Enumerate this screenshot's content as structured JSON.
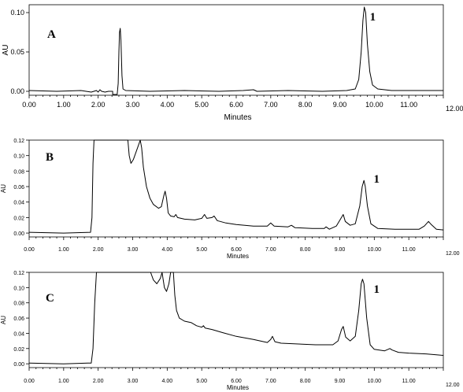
{
  "chart_data": [
    {
      "type": "line",
      "panel_label": "A",
      "xlabel": "Minutes",
      "ylabel": "AU",
      "xlim": [
        0,
        12
      ],
      "ylim": [
        -0.005,
        0.11
      ],
      "x_ticks": [
        "0.00",
        "1.00",
        "2.00",
        "3.00",
        "4.00",
        "5.00",
        "6.00",
        "7.00",
        "8.00",
        "9.00",
        "10.00",
        "11.00",
        "12.00"
      ],
      "y_ticks": [
        "0.00",
        "0.05",
        "0.10"
      ],
      "y_tick_values": [
        0,
        0.05,
        0.1
      ],
      "peak_labels": [
        {
          "text": "1",
          "x": 9.87,
          "y": 0.09
        }
      ],
      "series": [
        {
          "points": [
            [
              0,
              0.001
            ],
            [
              0.8,
              0.0
            ],
            [
              1.5,
              0.001
            ],
            [
              1.8,
              -0.001
            ],
            [
              1.95,
              0.001
            ],
            [
              2.0,
              -0.001
            ],
            [
              2.05,
              0.002
            ],
            [
              2.1,
              0.0
            ],
            [
              2.2,
              -0.001
            ],
            [
              2.3,
              0.0
            ],
            [
              2.42,
              0.0
            ],
            [
              2.42,
              -0.004
            ],
            [
              2.55,
              -0.004
            ],
            [
              2.58,
              0.01
            ],
            [
              2.6,
              0.05
            ],
            [
              2.62,
              0.075
            ],
            [
              2.64,
              0.08
            ],
            [
              2.66,
              0.065
            ],
            [
              2.69,
              0.02
            ],
            [
              2.72,
              0.003
            ],
            [
              2.8,
              0.001
            ],
            [
              3.5,
              0.0
            ],
            [
              4.5,
              0.001
            ],
            [
              5.5,
              0.0
            ],
            [
              6.2,
              0.001
            ],
            [
              6.5,
              0.002
            ],
            [
              6.6,
              0.0
            ],
            [
              7.5,
              0.001
            ],
            [
              8.5,
              0.0
            ],
            [
              9.2,
              0.001
            ],
            [
              9.45,
              0.003
            ],
            [
              9.55,
              0.015
            ],
            [
              9.62,
              0.05
            ],
            [
              9.67,
              0.09
            ],
            [
              9.71,
              0.107
            ],
            [
              9.75,
              0.1
            ],
            [
              9.8,
              0.06
            ],
            [
              9.87,
              0.025
            ],
            [
              9.95,
              0.008
            ],
            [
              10.1,
              0.003
            ],
            [
              10.5,
              0.001
            ],
            [
              11,
              0.001
            ],
            [
              12,
              0.001
            ]
          ]
        }
      ]
    },
    {
      "type": "line",
      "panel_label": "B",
      "xlabel": "Minutes",
      "ylabel": "AU",
      "xlim": [
        0,
        12
      ],
      "ylim": [
        -0.005,
        0.12
      ],
      "x_ticks": [
        "0.00",
        "1.00",
        "2.00",
        "3.00",
        "4.00",
        "5.00",
        "6.00",
        "7.00",
        "8.00",
        "9.00",
        "10.00",
        "11.00",
        "12.00"
      ],
      "y_ticks": [
        "0.00",
        "0.02",
        "0.04",
        "0.06",
        "0.08",
        "0.10",
        "0.12"
      ],
      "y_tick_values": [
        0,
        0.02,
        0.04,
        0.06,
        0.08,
        0.1,
        0.12
      ],
      "peak_labels": [
        {
          "text": "1",
          "x": 9.98,
          "y": 0.065
        }
      ],
      "series": [
        {
          "points": [
            [
              0,
              0.001
            ],
            [
              1.0,
              0.0
            ],
            [
              1.78,
              0.001
            ],
            [
              1.82,
              0.02
            ],
            [
              1.85,
              0.09
            ],
            [
              1.88,
              0.12
            ],
            [
              2.86,
              0.12
            ],
            [
              2.9,
              0.1
            ],
            [
              2.95,
              0.09
            ],
            [
              3.02,
              0.095
            ],
            [
              3.1,
              0.105
            ],
            [
              3.18,
              0.115
            ],
            [
              3.22,
              0.12
            ],
            [
              3.26,
              0.11
            ],
            [
              3.31,
              0.085
            ],
            [
              3.4,
              0.06
            ],
            [
              3.5,
              0.045
            ],
            [
              3.6,
              0.037
            ],
            [
              3.75,
              0.032
            ],
            [
              3.83,
              0.034
            ],
            [
              3.9,
              0.048
            ],
            [
              3.94,
              0.054
            ],
            [
              3.98,
              0.045
            ],
            [
              4.03,
              0.026
            ],
            [
              4.1,
              0.022
            ],
            [
              4.2,
              0.021
            ],
            [
              4.25,
              0.024
            ],
            [
              4.3,
              0.02
            ],
            [
              4.5,
              0.018
            ],
            [
              4.8,
              0.017
            ],
            [
              5.0,
              0.019
            ],
            [
              5.08,
              0.024
            ],
            [
              5.15,
              0.019
            ],
            [
              5.3,
              0.02
            ],
            [
              5.36,
              0.022
            ],
            [
              5.45,
              0.016
            ],
            [
              5.7,
              0.013
            ],
            [
              6.0,
              0.011
            ],
            [
              6.5,
              0.009
            ],
            [
              6.9,
              0.009
            ],
            [
              7.0,
              0.013
            ],
            [
              7.1,
              0.009
            ],
            [
              7.5,
              0.008
            ],
            [
              7.6,
              0.01
            ],
            [
              7.7,
              0.007
            ],
            [
              8.2,
              0.006
            ],
            [
              8.55,
              0.006
            ],
            [
              8.6,
              0.008
            ],
            [
              8.7,
              0.005
            ],
            [
              8.9,
              0.009
            ],
            [
              9.02,
              0.018
            ],
            [
              9.1,
              0.024
            ],
            [
              9.16,
              0.015
            ],
            [
              9.3,
              0.01
            ],
            [
              9.45,
              0.012
            ],
            [
              9.58,
              0.035
            ],
            [
              9.65,
              0.06
            ],
            [
              9.7,
              0.068
            ],
            [
              9.74,
              0.06
            ],
            [
              9.8,
              0.035
            ],
            [
              9.9,
              0.012
            ],
            [
              10.1,
              0.006
            ],
            [
              10.6,
              0.005
            ],
            [
              11.0,
              0.005
            ],
            [
              11.3,
              0.005
            ],
            [
              11.45,
              0.009
            ],
            [
              11.57,
              0.015
            ],
            [
              11.65,
              0.011
            ],
            [
              11.8,
              0.005
            ],
            [
              12,
              0.004
            ]
          ]
        }
      ]
    },
    {
      "type": "line",
      "panel_label": "C",
      "xlabel": "Minutes",
      "ylabel": "AU",
      "xlim": [
        0,
        12
      ],
      "ylim": [
        -0.005,
        0.12
      ],
      "x_ticks": [
        "0.00",
        "1.00",
        "2.00",
        "3.00",
        "4.00",
        "5.00",
        "6.00",
        "7.00",
        "8.00",
        "9.00",
        "10.00",
        "11.00",
        "12.00"
      ],
      "y_ticks": [
        "0.00",
        "0.02",
        "0.04",
        "0.06",
        "0.08",
        "0.10",
        "0.12"
      ],
      "y_tick_values": [
        0,
        0.02,
        0.04,
        0.06,
        0.08,
        0.1,
        0.12
      ],
      "peak_labels": [
        {
          "text": "1",
          "x": 9.98,
          "y": 0.093
        }
      ],
      "series": [
        {
          "points": [
            [
              0,
              0.001
            ],
            [
              1.0,
              0.0
            ],
            [
              1.7,
              0.001
            ],
            [
              1.8,
              0.001
            ],
            [
              1.85,
              0.02
            ],
            [
              1.9,
              0.08
            ],
            [
              1.95,
              0.12
            ],
            [
              3.52,
              0.12
            ],
            [
              3.6,
              0.11
            ],
            [
              3.7,
              0.105
            ],
            [
              3.8,
              0.112
            ],
            [
              3.85,
              0.12
            ],
            [
              3.92,
              0.1
            ],
            [
              3.98,
              0.095
            ],
            [
              4.05,
              0.105
            ],
            [
              4.1,
              0.12
            ],
            [
              4.18,
              0.12
            ],
            [
              4.22,
              0.09
            ],
            [
              4.27,
              0.07
            ],
            [
              4.35,
              0.06
            ],
            [
              4.5,
              0.056
            ],
            [
              4.7,
              0.054
            ],
            [
              4.85,
              0.05
            ],
            [
              5.0,
              0.048
            ],
            [
              5.05,
              0.05
            ],
            [
              5.1,
              0.047
            ],
            [
              5.3,
              0.045
            ],
            [
              5.6,
              0.041
            ],
            [
              6.0,
              0.036
            ],
            [
              6.5,
              0.032
            ],
            [
              6.9,
              0.028
            ],
            [
              7.0,
              0.032
            ],
            [
              7.05,
              0.036
            ],
            [
              7.12,
              0.029
            ],
            [
              7.3,
              0.027
            ],
            [
              7.8,
              0.026
            ],
            [
              8.3,
              0.025
            ],
            [
              8.8,
              0.025
            ],
            [
              8.95,
              0.03
            ],
            [
              9.05,
              0.045
            ],
            [
              9.1,
              0.049
            ],
            [
              9.17,
              0.035
            ],
            [
              9.3,
              0.03
            ],
            [
              9.45,
              0.036
            ],
            [
              9.55,
              0.07
            ],
            [
              9.62,
              0.105
            ],
            [
              9.66,
              0.111
            ],
            [
              9.7,
              0.105
            ],
            [
              9.78,
              0.06
            ],
            [
              9.88,
              0.025
            ],
            [
              10.0,
              0.019
            ],
            [
              10.3,
              0.017
            ],
            [
              10.45,
              0.02
            ],
            [
              10.52,
              0.018
            ],
            [
              10.7,
              0.015
            ],
            [
              11.0,
              0.014
            ],
            [
              11.5,
              0.013
            ],
            [
              12,
              0.011
            ]
          ]
        }
      ]
    }
  ]
}
